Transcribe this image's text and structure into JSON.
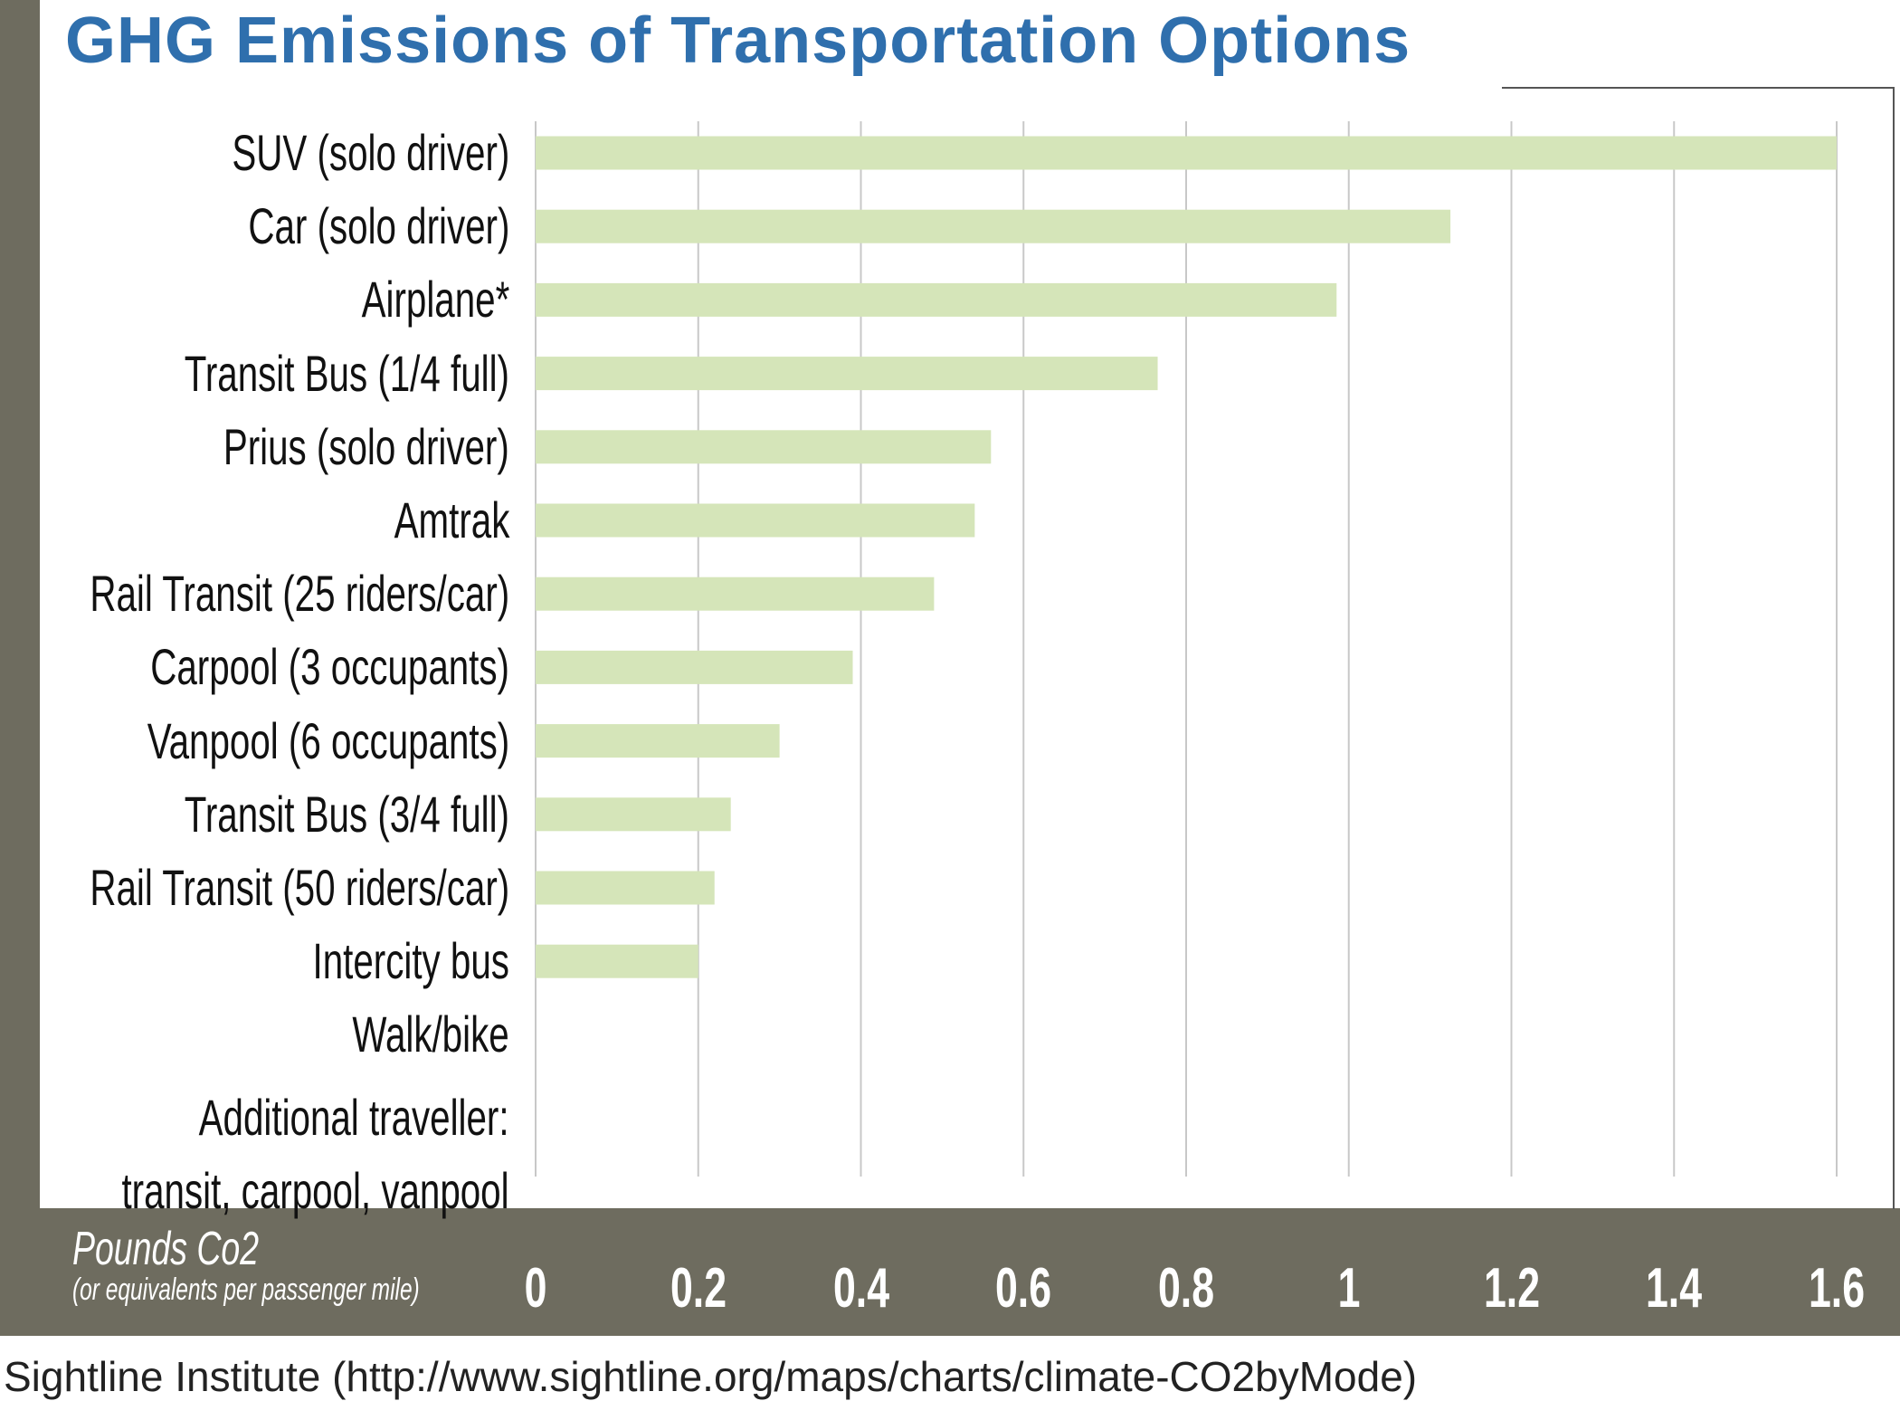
{
  "chart_data": {
    "type": "bar",
    "orientation": "horizontal",
    "title": "GHG Emissions of Transportation Options",
    "xlabel": "Pounds Co2",
    "xlabel_sub": "(or equivalents per passenger mile)",
    "categories": [
      "SUV (solo driver)",
      "Car (solo driver)",
      "Airplane*",
      "Transit Bus (1/4 full)",
      "Prius (solo driver)",
      "Amtrak",
      "Rail Transit (25 riders/car)",
      "Carpool (3 occupants)",
      "Vanpool (6 occupants)",
      "Transit Bus (3/4 full)",
      "Rail Transit (50 riders/car)",
      "Intercity bus",
      "Walk/bike",
      "Additional traveller: transit, carpool, vanpool"
    ],
    "category_lines": [
      [
        "SUV (solo driver)"
      ],
      [
        "Car (solo driver)"
      ],
      [
        "Airplane*"
      ],
      [
        "Transit Bus (1/4 full)"
      ],
      [
        "Prius (solo driver)"
      ],
      [
        "Amtrak"
      ],
      [
        "Rail Transit (25 riders/car)"
      ],
      [
        "Carpool (3 occupants)"
      ],
      [
        "Vanpool (6 occupants)"
      ],
      [
        "Transit Bus (3/4 full)"
      ],
      [
        "Rail Transit (50 riders/car)"
      ],
      [
        "Intercity bus"
      ],
      [
        "Walk/bike"
      ],
      [
        "Additional traveller:",
        "transit, carpool, vanpool"
      ]
    ],
    "values": [
      1.6,
      1.125,
      0.985,
      0.765,
      0.56,
      0.54,
      0.49,
      0.39,
      0.3,
      0.24,
      0.22,
      0.2,
      0,
      0
    ],
    "xlim": [
      0,
      1.6
    ],
    "xticks": [
      "0",
      "0.2",
      "0.4",
      "0.6",
      "0.8",
      "1",
      "1.2",
      "1.4",
      "1.6"
    ],
    "grid": true,
    "colors": {
      "bar": "#d5e5b9",
      "title": "#2f6fad",
      "band": "#6e6c5f",
      "grid": "#c8c8c8"
    }
  },
  "source": "Sightline Institute (http://www.sightline.org/maps/charts/climate-CO2byMode)"
}
